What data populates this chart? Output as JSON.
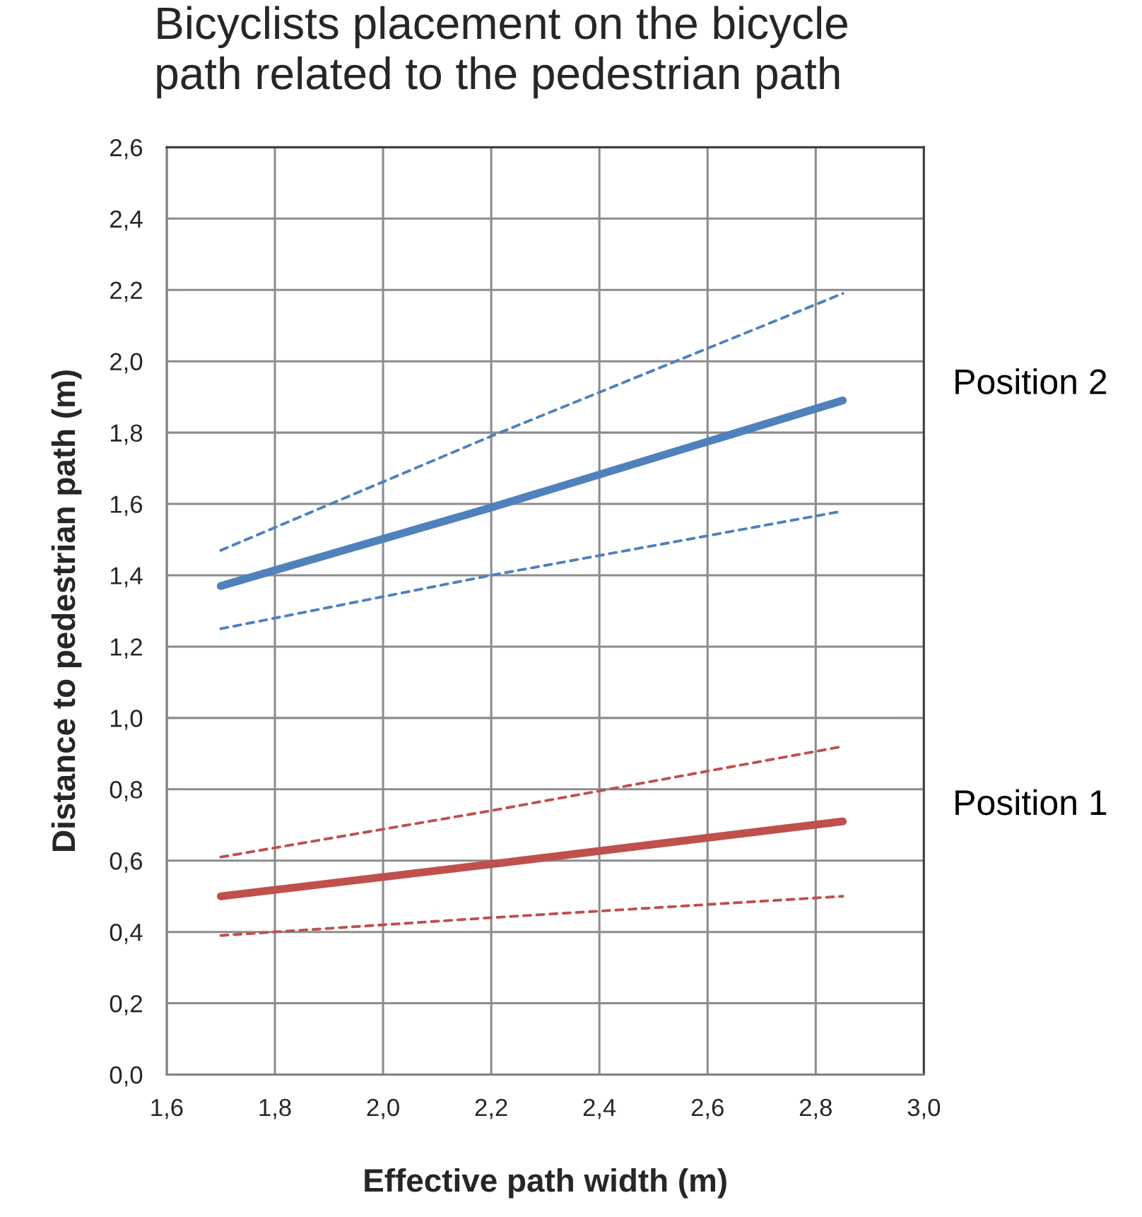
{
  "chart_data": {
    "type": "line",
    "title": "Bicyclists placement on the bicycle\npath related to the pedestrian path",
    "xlabel": "Effective path width (m)",
    "ylabel": "Distance to pedestrian path (m)",
    "series": [
      {
        "name": "Position 2",
        "color": "#4f81bd",
        "line_style": "solid",
        "x": [
          1.7,
          2.2,
          2.85
        ],
        "values": [
          1.37,
          1.59,
          1.89
        ]
      },
      {
        "color": "#4f81bd",
        "line_style": "dashed",
        "x": [
          1.7,
          2.2,
          2.85
        ],
        "values": [
          1.47,
          1.79,
          2.19
        ]
      },
      {
        "color": "#4f81bd",
        "line_style": "dashed",
        "x": [
          1.7,
          2.2,
          2.85
        ],
        "values": [
          1.25,
          1.4,
          1.58
        ]
      },
      {
        "name": "Position 1",
        "color": "#c0504d",
        "line_style": "solid",
        "x": [
          1.7,
          2.2,
          2.85
        ],
        "values": [
          0.5,
          0.59,
          0.71
        ]
      },
      {
        "color": "#c0504d",
        "line_style": "dashed",
        "x": [
          1.7,
          2.2,
          2.85
        ],
        "values": [
          0.61,
          0.74,
          0.92
        ]
      },
      {
        "color": "#c0504d",
        "line_style": "dashed",
        "x": [
          1.7,
          2.2,
          2.85
        ],
        "values": [
          0.39,
          0.44,
          0.5
        ]
      }
    ],
    "xlim": [
      1.6,
      3.0
    ],
    "xticks": [
      {
        "value": 1.6,
        "label": "1,6"
      },
      {
        "value": 1.8,
        "label": "1,8"
      },
      {
        "value": 2.0,
        "label": "2,0"
      },
      {
        "value": 2.2,
        "label": "2,2"
      },
      {
        "value": 2.4,
        "label": "2,4"
      },
      {
        "value": 2.6,
        "label": "2,6"
      },
      {
        "value": 2.8,
        "label": "2,8"
      },
      {
        "value": 3.0,
        "label": "3,0"
      }
    ],
    "ylim": [
      0.0,
      2.6
    ],
    "yticks": [
      {
        "value": 0.0,
        "label": "0,0"
      },
      {
        "value": 0.2,
        "label": "0,2"
      },
      {
        "value": 0.4,
        "label": "0,4"
      },
      {
        "value": 0.6,
        "label": "0,6"
      },
      {
        "value": 0.8,
        "label": "0,8"
      },
      {
        "value": 1.0,
        "label": "1,0"
      },
      {
        "value": 1.2,
        "label": "1,2"
      },
      {
        "value": 1.4,
        "label": "1,4"
      },
      {
        "value": 1.6,
        "label": "1,6"
      },
      {
        "value": 1.8,
        "label": "1,8"
      },
      {
        "value": 2.0,
        "label": "2,0"
      },
      {
        "value": 2.2,
        "label": "2,2"
      },
      {
        "value": 2.4,
        "label": "2,4"
      },
      {
        "value": 2.6,
        "label": "2,6"
      }
    ],
    "grid": true,
    "legend": false,
    "marker": "none"
  }
}
